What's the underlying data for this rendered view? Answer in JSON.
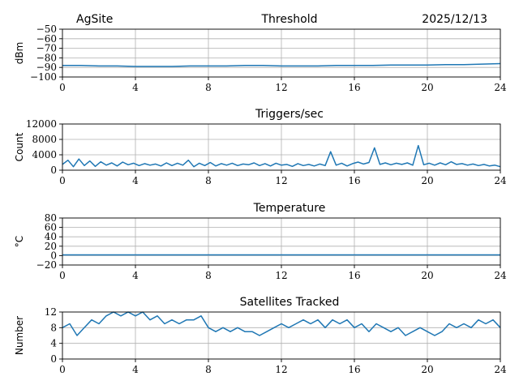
{
  "header": {
    "site": "AgSite",
    "date": "2025/12/13"
  },
  "colors": {
    "series": "#1f77b4",
    "grid": "#b0b0b0",
    "axis": "#000000"
  },
  "chart_data": [
    {
      "type": "line",
      "title": "Threshold",
      "ylabel": "dBm",
      "xlim": [
        0,
        24
      ],
      "ylim": [
        -100,
        -50
      ],
      "xticks": [
        "0",
        "4",
        "8",
        "12",
        "16",
        "20",
        "24"
      ],
      "yticks": [
        "−50",
        "−60",
        "−70",
        "−80",
        "−90",
        "−100"
      ],
      "grid": true,
      "series": [
        {
          "x": [
            0,
            1,
            2,
            3,
            4,
            5,
            6,
            7,
            8,
            9,
            10,
            11,
            12,
            13,
            14,
            15,
            16,
            17,
            18,
            19,
            20,
            21,
            22,
            23,
            24
          ],
          "y": [
            -88,
            -88,
            -88.5,
            -88.5,
            -89,
            -89,
            -89,
            -88.5,
            -88.5,
            -88.5,
            -88,
            -88,
            -88.5,
            -88.5,
            -88.5,
            -88,
            -88,
            -88,
            -87.5,
            -87.5,
            -87.5,
            -87,
            -87,
            -86.5,
            -86
          ]
        }
      ]
    },
    {
      "type": "line",
      "title": "Triggers/sec",
      "ylabel": "Count",
      "xlim": [
        0,
        24
      ],
      "ylim": [
        0,
        12000
      ],
      "xticks": [
        "0",
        "4",
        "8",
        "12",
        "16",
        "20",
        "24"
      ],
      "yticks": [
        "12000",
        "8000",
        "4000",
        "0"
      ],
      "grid": true,
      "series": [
        {
          "x": [
            0,
            0.3,
            0.6,
            0.9,
            1.2,
            1.5,
            1.8,
            2.1,
            2.4,
            2.7,
            3.0,
            3.3,
            3.6,
            3.9,
            4.2,
            4.5,
            4.8,
            5.1,
            5.4,
            5.7,
            6.0,
            6.3,
            6.6,
            6.9,
            7.2,
            7.5,
            7.8,
            8.1,
            8.4,
            8.7,
            9.0,
            9.3,
            9.6,
            9.9,
            10.2,
            10.5,
            10.8,
            11.1,
            11.4,
            11.7,
            12.0,
            12.3,
            12.6,
            12.9,
            13.2,
            13.5,
            13.8,
            14.1,
            14.4,
            14.7,
            15.0,
            15.3,
            15.6,
            15.9,
            16.2,
            16.5,
            16.8,
            17.1,
            17.4,
            17.7,
            18.0,
            18.3,
            18.6,
            18.9,
            19.2,
            19.5,
            19.8,
            20.1,
            20.4,
            20.7,
            21.0,
            21.3,
            21.6,
            21.9,
            22.2,
            22.5,
            22.8,
            23.1,
            23.4,
            23.7,
            24.0
          ],
          "y": [
            1500,
            2600,
            900,
            2900,
            1200,
            2400,
            1000,
            2200,
            1300,
            1900,
            1100,
            2100,
            1400,
            1800,
            1200,
            1700,
            1300,
            1600,
            1100,
            1900,
            1200,
            1800,
            1300,
            2600,
            900,
            1800,
            1200,
            2000,
            1100,
            1700,
            1300,
            1800,
            1200,
            1600,
            1400,
            1900,
            1200,
            1700,
            1100,
            1800,
            1300,
            1500,
            1000,
            1700,
            1200,
            1500,
            1100,
            1600,
            1200,
            4800,
            1300,
            1800,
            1100,
            1700,
            2100,
            1600,
            2000,
            5800,
            1500,
            1900,
            1400,
            1800,
            1500,
            1900,
            1300,
            6400,
            1400,
            1800,
            1300,
            1900,
            1400,
            2200,
            1500,
            1700,
            1300,
            1600,
            1200,
            1500,
            1100,
            1300,
            900
          ]
        }
      ]
    },
    {
      "type": "line",
      "title": "Temperature",
      "ylabel": "°C",
      "xlim": [
        0,
        24
      ],
      "ylim": [
        -20,
        80
      ],
      "xticks": [
        "0",
        "4",
        "8",
        "12",
        "16",
        "20",
        "24"
      ],
      "yticks": [
        "80",
        "60",
        "40",
        "20",
        "0",
        "−20"
      ],
      "grid": true,
      "series": [
        {
          "x": [
            0,
            24
          ],
          "y": [
            1.5,
            1.5
          ]
        }
      ]
    },
    {
      "type": "line",
      "title": "Satellites Tracked",
      "ylabel": "Number",
      "xlim": [
        0,
        24
      ],
      "ylim": [
        0,
        12
      ],
      "xticks": [
        "0",
        "4",
        "8",
        "12",
        "16",
        "20",
        "24"
      ],
      "yticks": [
        "12",
        "8",
        "4",
        "0"
      ],
      "grid": true,
      "series": [
        {
          "x": [
            0,
            0.4,
            0.8,
            1.2,
            1.6,
            2.0,
            2.4,
            2.8,
            3.2,
            3.6,
            4.0,
            4.4,
            4.8,
            5.2,
            5.6,
            6.0,
            6.4,
            6.8,
            7.2,
            7.6,
            8.0,
            8.4,
            8.8,
            9.2,
            9.6,
            10.0,
            10.4,
            10.8,
            11.2,
            11.6,
            12.0,
            12.4,
            12.8,
            13.2,
            13.6,
            14.0,
            14.4,
            14.8,
            15.2,
            15.6,
            16.0,
            16.4,
            16.8,
            17.2,
            17.6,
            18.0,
            18.4,
            18.8,
            19.2,
            19.6,
            20.0,
            20.4,
            20.8,
            21.2,
            21.6,
            22.0,
            22.4,
            22.8,
            23.2,
            23.6,
            24.0
          ],
          "y": [
            8,
            9,
            6,
            8,
            10,
            9,
            11,
            12,
            11,
            12,
            11,
            12,
            10,
            11,
            9,
            10,
            9,
            10,
            10,
            11,
            8,
            7,
            8,
            7,
            8,
            7,
            7,
            6,
            7,
            8,
            9,
            8,
            9,
            10,
            9,
            10,
            8,
            10,
            9,
            10,
            8,
            9,
            7,
            9,
            8,
            7,
            8,
            6,
            7,
            8,
            7,
            6,
            7,
            9,
            8,
            9,
            8,
            10,
            9,
            10,
            8
          ]
        }
      ]
    }
  ]
}
